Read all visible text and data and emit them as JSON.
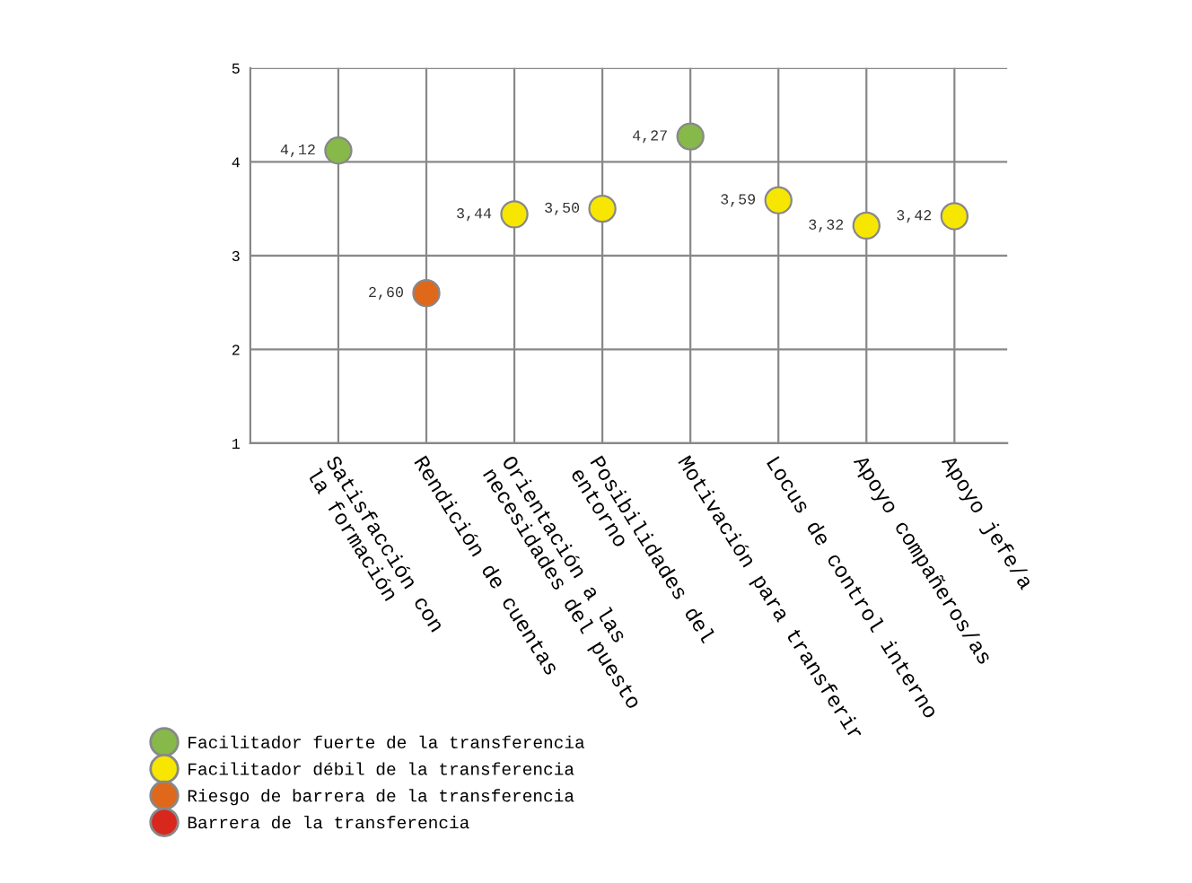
{
  "chart_data": {
    "type": "scatter",
    "categories": [
      "Satisfacción con\nla formación",
      "Rendición de cuentas",
      "Orientación a las\nnecesidades del puesto",
      "Posibilidades del\nentorno",
      "Motivación para transferir",
      "Locus de control interno",
      "Apoyo compañeros/as",
      "Apoyo jefe/a"
    ],
    "series": [
      {
        "name": "Facilitador fuerte de la transferencia",
        "color": "#86b84a",
        "values": [
          4.12,
          null,
          null,
          null,
          4.27,
          null,
          null,
          null
        ],
        "value_labels": [
          "4,12",
          null,
          null,
          null,
          "4,27",
          null,
          null,
          null
        ]
      },
      {
        "name": "Facilitador débil de la transferencia",
        "color": "#f7e600",
        "values": [
          null,
          null,
          3.44,
          3.5,
          null,
          3.59,
          3.32,
          3.42
        ],
        "value_labels": [
          null,
          null,
          "3,44",
          "3,50",
          null,
          "3,59",
          "3,32",
          "3,42"
        ]
      },
      {
        "name": "Riesgo de barrera de la transferencia",
        "color": "#e0681a",
        "values": [
          null,
          2.6,
          null,
          null,
          null,
          null,
          null,
          null
        ],
        "value_labels": [
          null,
          "2,60",
          null,
          null,
          null,
          null,
          null,
          null
        ]
      },
      {
        "name": "Barrera de la transferencia",
        "color": "#d8281e",
        "values": [
          null,
          null,
          null,
          null,
          null,
          null,
          null,
          null
        ]
      }
    ],
    "ylim": [
      1,
      5
    ],
    "yticks": [
      1,
      2,
      3,
      4,
      5
    ],
    "grid": true,
    "marker": "circle",
    "legend": "bottom left"
  }
}
